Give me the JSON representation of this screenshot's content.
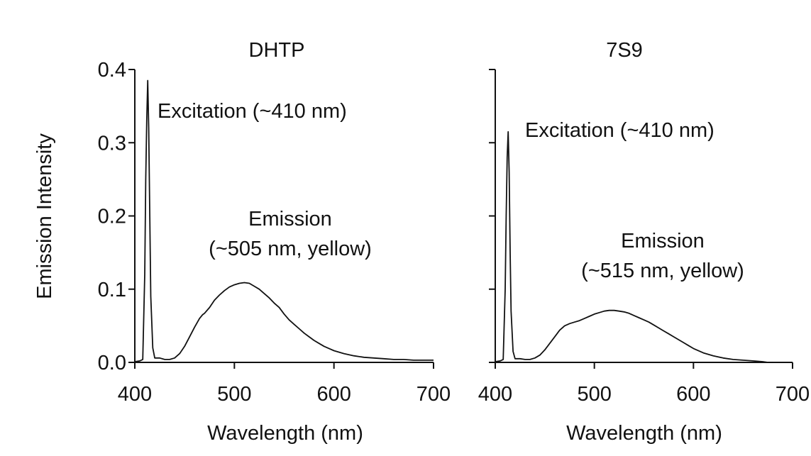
{
  "chart_data": [
    {
      "type": "line",
      "title": "DHTP",
      "xlabel": "Wavelength (nm)",
      "ylabel": "Emission Intensity",
      "xlim": [
        400,
        700
      ],
      "ylim": [
        0,
        0.4
      ],
      "xticks": [
        400,
        500,
        600,
        700
      ],
      "yticks": [
        0.0,
        0.1,
        0.2,
        0.3,
        0.4
      ],
      "ytick_labels": [
        "0.0",
        "0.1",
        "0.2",
        "0.3",
        "0.4"
      ],
      "annotations": [
        {
          "lines": [
            "Excitation (~410 nm)"
          ],
          "x": 410,
          "y": 0.385
        },
        {
          "lines": [
            "Emission",
            "(~505 nm, yellow)"
          ],
          "x": 505,
          "y": 0.11
        }
      ],
      "series": [
        {
          "x": [
            400,
            405,
            408,
            410,
            411,
            412,
            413,
            414,
            415,
            416,
            418,
            420,
            425,
            430,
            435,
            440,
            445,
            450,
            455,
            460,
            465,
            468,
            470,
            475,
            480,
            485,
            490,
            495,
            500,
            505,
            510,
            515,
            520,
            525,
            530,
            535,
            540,
            545,
            550,
            555,
            560,
            565,
            570,
            575,
            580,
            585,
            590,
            595,
            600,
            610,
            620,
            630,
            640,
            650,
            660,
            670,
            680,
            690,
            700
          ],
          "y": [
            0.001,
            0.002,
            0.004,
            0.12,
            0.25,
            0.33,
            0.385,
            0.32,
            0.2,
            0.09,
            0.02,
            0.006,
            0.006,
            0.004,
            0.004,
            0.006,
            0.012,
            0.022,
            0.035,
            0.048,
            0.06,
            0.065,
            0.067,
            0.075,
            0.085,
            0.092,
            0.098,
            0.103,
            0.106,
            0.108,
            0.109,
            0.108,
            0.104,
            0.1,
            0.094,
            0.088,
            0.081,
            0.075,
            0.066,
            0.058,
            0.052,
            0.046,
            0.04,
            0.035,
            0.03,
            0.026,
            0.022,
            0.019,
            0.016,
            0.012,
            0.009,
            0.007,
            0.006,
            0.005,
            0.004,
            0.004,
            0.003,
            0.003,
            0.003
          ]
        }
      ]
    },
    {
      "type": "line",
      "title": "7S9",
      "xlabel": "Wavelength (nm)",
      "ylabel": "",
      "xlim": [
        400,
        700
      ],
      "ylim": [
        0,
        0.4
      ],
      "xticks": [
        400,
        500,
        600,
        700
      ],
      "yticks": [
        0.0,
        0.1,
        0.2,
        0.3,
        0.4
      ],
      "ytick_labels": [],
      "annotations": [
        {
          "lines": [
            "Excitation (~410 nm)"
          ],
          "x": 410,
          "y": 0.315
        },
        {
          "lines": [
            "Emission",
            "(~515 nm, yellow)"
          ],
          "x": 515,
          "y": 0.07
        }
      ],
      "series": [
        {
          "x": [
            400,
            405,
            408,
            410,
            411,
            412,
            413,
            414,
            415,
            416,
            418,
            420,
            425,
            430,
            435,
            440,
            445,
            450,
            455,
            460,
            465,
            470,
            475,
            480,
            485,
            490,
            495,
            500,
            505,
            510,
            515,
            520,
            525,
            530,
            535,
            540,
            545,
            550,
            555,
            560,
            565,
            570,
            575,
            580,
            585,
            590,
            595,
            600,
            610,
            620,
            630,
            640,
            650,
            660,
            670,
            675,
            680
          ],
          "y": [
            0.001,
            0.002,
            0.004,
            0.1,
            0.2,
            0.28,
            0.315,
            0.26,
            0.15,
            0.07,
            0.015,
            0.005,
            0.005,
            0.004,
            0.004,
            0.006,
            0.01,
            0.017,
            0.026,
            0.035,
            0.044,
            0.05,
            0.053,
            0.055,
            0.057,
            0.06,
            0.063,
            0.066,
            0.068,
            0.07,
            0.071,
            0.071,
            0.07,
            0.069,
            0.067,
            0.064,
            0.061,
            0.058,
            0.055,
            0.051,
            0.047,
            0.043,
            0.039,
            0.035,
            0.031,
            0.027,
            0.023,
            0.019,
            0.013,
            0.009,
            0.006,
            0.004,
            0.003,
            0.002,
            0.001,
            0.0,
            0.0
          ]
        }
      ]
    }
  ]
}
